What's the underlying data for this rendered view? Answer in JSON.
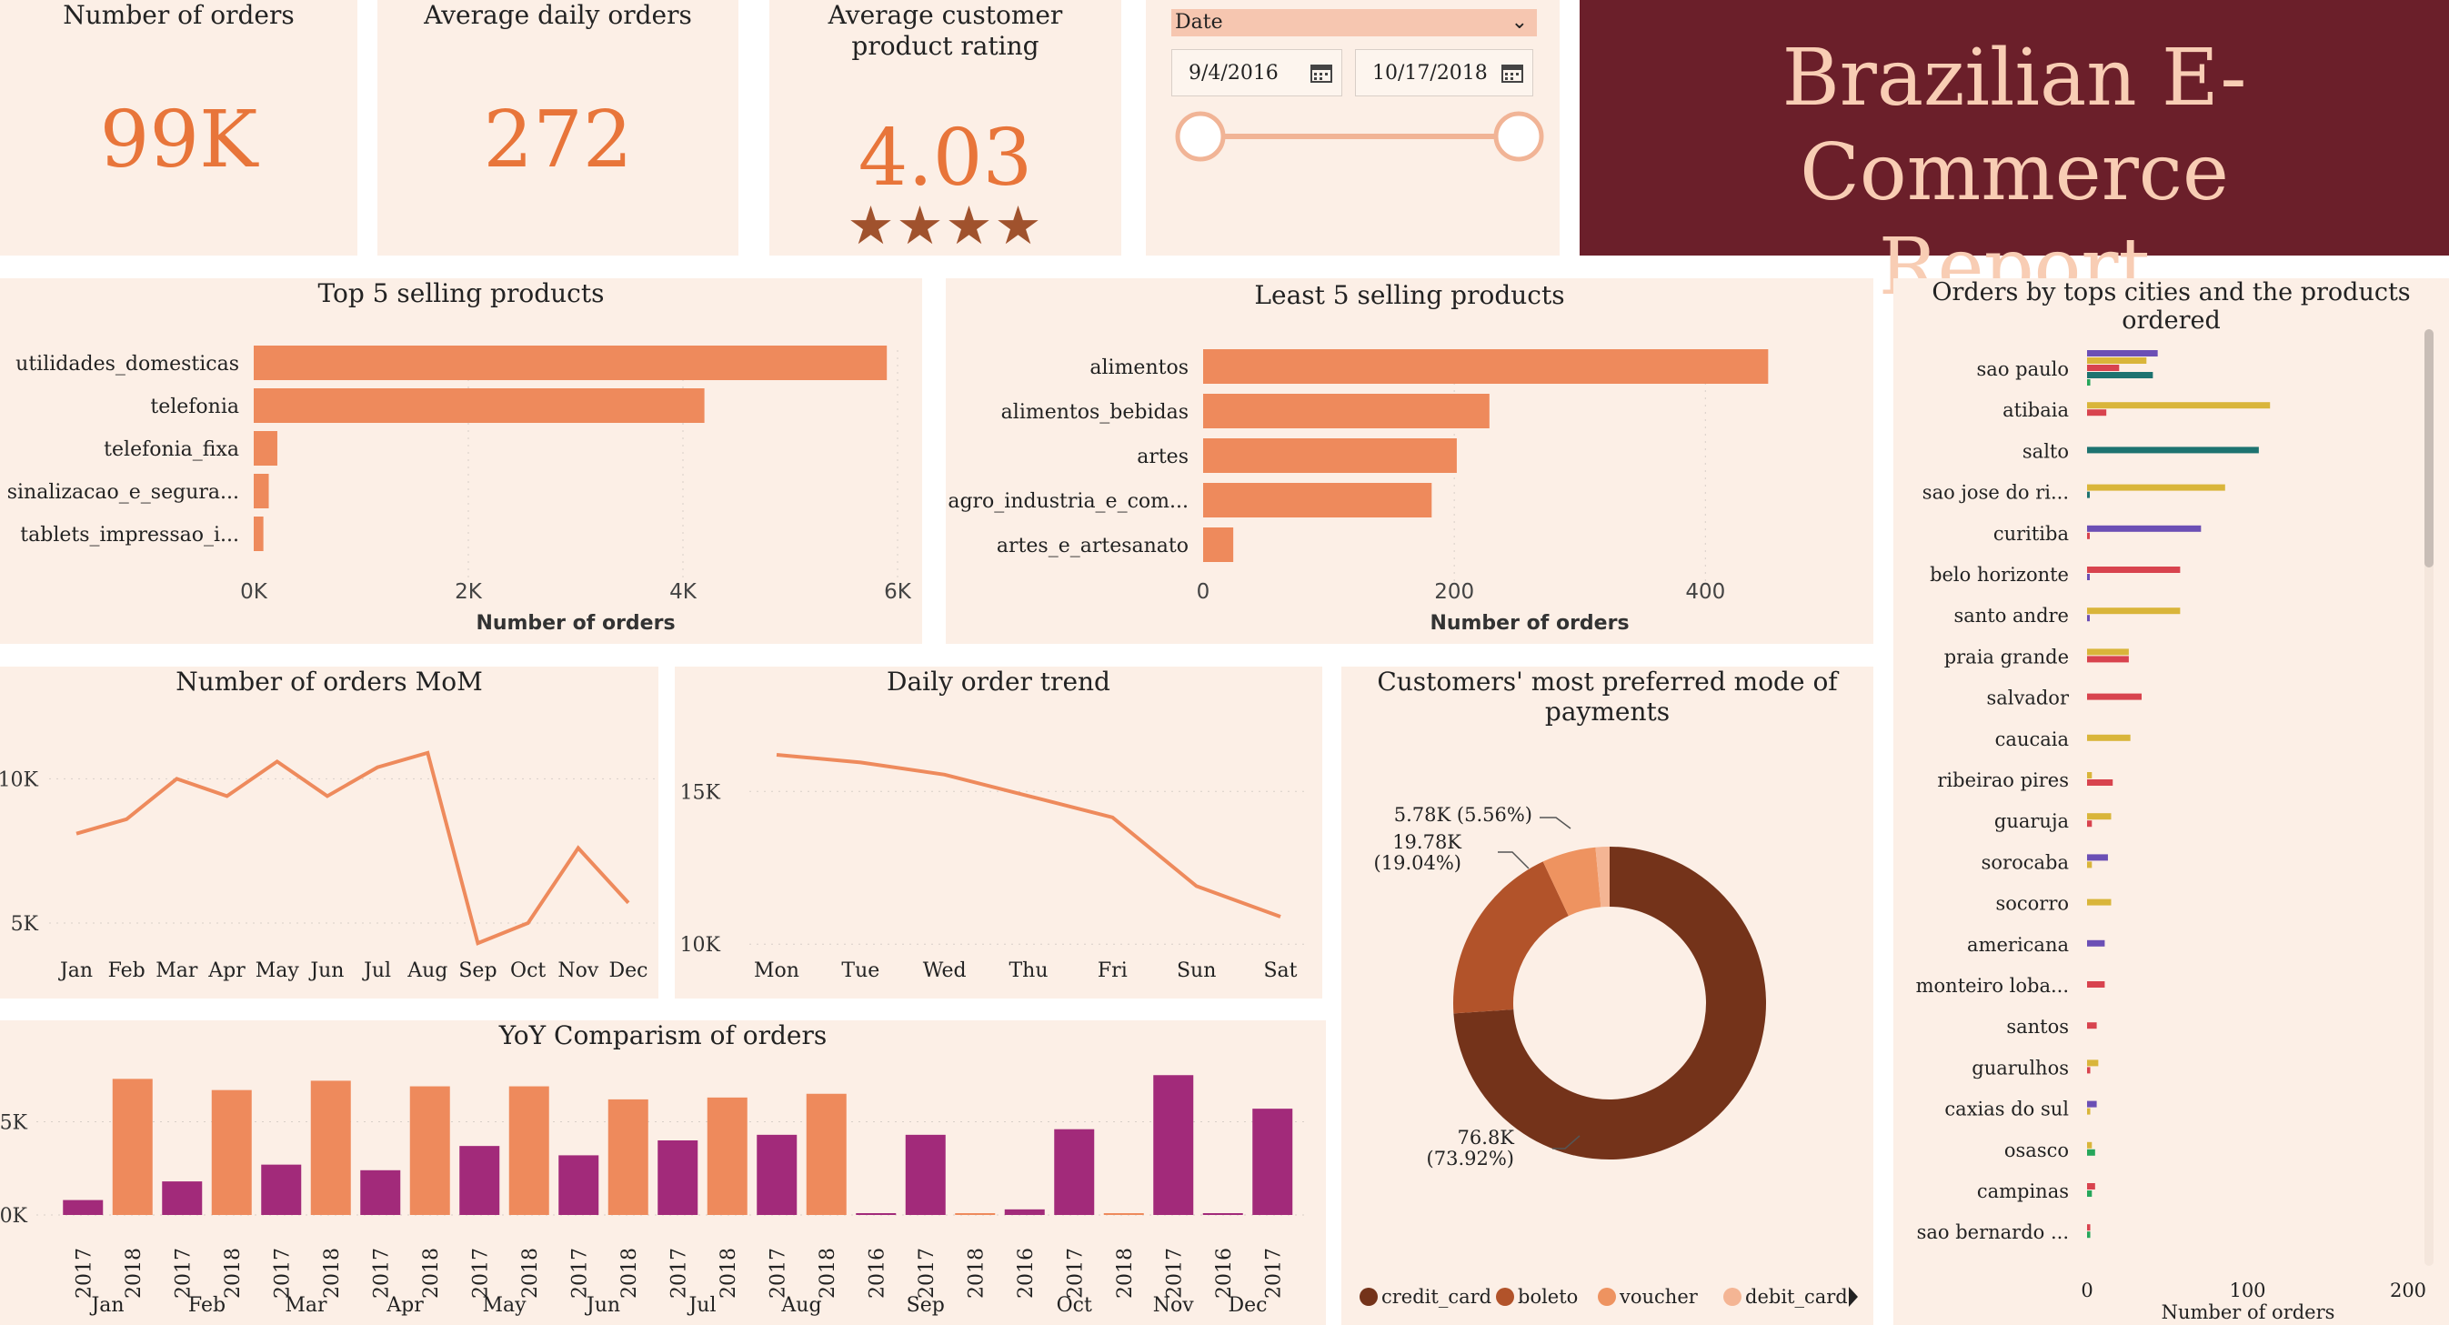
{
  "kpis": {
    "orders": {
      "label": "Number of orders",
      "value": "99K"
    },
    "avg_daily": {
      "label": "Average daily orders",
      "value": "272"
    },
    "rating": {
      "label": "Average customer product rating",
      "value": "4.03",
      "stars": 4.03,
      "star_glyphs": "★★★★"
    }
  },
  "date_filter": {
    "label": "Date",
    "start": "9/4/2016",
    "end": "10/17/2018",
    "range_start_fraction": 0,
    "range_end_fraction": 1
  },
  "banner": {
    "line1": "Brazilian E-Commerce",
    "line2": "Report"
  },
  "colors": {
    "accent": "#e8753a",
    "bar": "#ee8a5c",
    "purple": "#a22a7a",
    "banner_bg": "#6b1f2a",
    "card_bg": "#fcefe6"
  },
  "chart_data": [
    {
      "id": "top5",
      "type": "bar",
      "orientation": "horizontal",
      "title": "Top 5 selling products",
      "categories": [
        "utilidades_domesticas",
        "telefonia",
        "telefonia_fixa",
        "sinalizacao_e_segura...",
        "tablets_impressao_i..."
      ],
      "values": [
        5900,
        4200,
        220,
        140,
        90
      ],
      "xlabel": "Number of orders",
      "xlim": [
        0,
        6000
      ],
      "ticks": [
        0,
        2000,
        4000,
        6000
      ],
      "tick_labels": [
        "0K",
        "2K",
        "4K",
        "6K"
      ]
    },
    {
      "id": "least5",
      "type": "bar",
      "orientation": "horizontal",
      "title": "Least 5 selling products",
      "categories": [
        "alimentos",
        "alimentos_bebidas",
        "artes",
        "agro_industria_e_com...",
        "artes_e_artesanato"
      ],
      "values": [
        450,
        228,
        202,
        182,
        24
      ],
      "xlabel": "Number of orders",
      "xlim": [
        0,
        520
      ],
      "ticks": [
        0,
        200,
        400
      ],
      "tick_labels": [
        "0",
        "200",
        "400"
      ]
    },
    {
      "id": "mom",
      "type": "line",
      "title": "Number of orders MoM",
      "categories": [
        "Jan",
        "Feb",
        "Mar",
        "Apr",
        "May",
        "Jun",
        "Jul",
        "Aug",
        "Sep",
        "Oct",
        "Nov",
        "Dec"
      ],
      "values": [
        8100,
        8600,
        10000,
        9400,
        10600,
        9400,
        10400,
        10900,
        4300,
        5000,
        7600,
        5700
      ],
      "ylim": [
        3800,
        12000
      ],
      "ticks": [
        5000,
        10000
      ],
      "tick_labels": [
        "5K",
        "10K"
      ]
    },
    {
      "id": "daily",
      "type": "line",
      "title": "Daily order trend",
      "categories": [
        "Mon",
        "Tue",
        "Wed",
        "Thu",
        "Fri",
        "Sun",
        "Sat"
      ],
      "values": [
        16200,
        15950,
        15550,
        14850,
        14150,
        11900,
        10900
      ],
      "ylim": [
        9500,
        17300
      ],
      "ticks": [
        10000,
        15000
      ],
      "tick_labels": [
        "10K",
        "15K"
      ]
    },
    {
      "id": "yoy",
      "type": "bar",
      "title": "YoY Comparism of orders",
      "groups": [
        {
          "month": "Jan",
          "bars": [
            {
              "year": "2017",
              "value": 800
            },
            {
              "year": "2018",
              "value": 7300
            }
          ]
        },
        {
          "month": "Feb",
          "bars": [
            {
              "year": "2017",
              "value": 1800
            },
            {
              "year": "2018",
              "value": 6700
            }
          ]
        },
        {
          "month": "Mar",
          "bars": [
            {
              "year": "2017",
              "value": 2700
            },
            {
              "year": "2018",
              "value": 7200
            }
          ]
        },
        {
          "month": "Apr",
          "bars": [
            {
              "year": "2017",
              "value": 2400
            },
            {
              "year": "2018",
              "value": 6900
            }
          ]
        },
        {
          "month": "May",
          "bars": [
            {
              "year": "2017",
              "value": 3700
            },
            {
              "year": "2018",
              "value": 6900
            }
          ]
        },
        {
          "month": "Jun",
          "bars": [
            {
              "year": "2017",
              "value": 3200
            },
            {
              "year": "2018",
              "value": 6200
            }
          ]
        },
        {
          "month": "Jul",
          "bars": [
            {
              "year": "2017",
              "value": 4000
            },
            {
              "year": "2018",
              "value": 6300
            }
          ]
        },
        {
          "month": "Aug",
          "bars": [
            {
              "year": "2017",
              "value": 4300
            },
            {
              "year": "2018",
              "value": 6500
            }
          ]
        },
        {
          "month": "Sep",
          "bars": [
            {
              "year": "2016",
              "value": 40
            },
            {
              "year": "2017",
              "value": 4300
            },
            {
              "year": "2018",
              "value": 50
            }
          ]
        },
        {
          "month": "Oct",
          "bars": [
            {
              "year": "2016",
              "value": 300
            },
            {
              "year": "2017",
              "value": 4600
            },
            {
              "year": "2018",
              "value": 50
            }
          ]
        },
        {
          "month": "Nov",
          "bars": [
            {
              "year": "2017",
              "value": 7500
            }
          ]
        },
        {
          "month": "Dec",
          "bars": [
            {
              "year": "2016",
              "value": 50
            },
            {
              "year": "2017",
              "value": 5700
            }
          ]
        }
      ],
      "ylim": [
        0,
        8000
      ],
      "ticks": [
        0,
        5000
      ],
      "tick_labels": [
        "0K",
        "5K"
      ]
    },
    {
      "id": "payments",
      "type": "pie",
      "donut": true,
      "title": "Customers' most preferred mode of payments",
      "slices": [
        {
          "name": "credit_card",
          "value": 76.8,
          "label": "76.8K",
          "pct": "(73.92%)",
          "color": "#74331a"
        },
        {
          "name": "boleto",
          "value": 19.78,
          "label": "19.78K",
          "pct": "(19.04%)",
          "color": "#b2532a"
        },
        {
          "name": "voucher",
          "value": 5.78,
          "label": "5.78K (5.56%)",
          "pct": "",
          "color": "#ee9360"
        },
        {
          "name": "debit_card",
          "value": 1.5,
          "label": "",
          "pct": "",
          "color": "#f4b594"
        }
      ],
      "legend": [
        "credit_card",
        "boleto",
        "voucher",
        "debit_card"
      ]
    },
    {
      "id": "cities",
      "type": "bar",
      "orientation": "horizontal",
      "title": "Orders by tops cities and the products ordered",
      "xlabel": "Number of orders",
      "xlim": [
        0,
        200
      ],
      "ticks": [
        0,
        100,
        200
      ],
      "tick_labels": [
        "0",
        "100",
        "200"
      ],
      "series_colors": {
        "purple": "#6b4fb5",
        "gold": "#d9b53a",
        "red": "#d8434e",
        "teal": "#1d7370",
        "green": "#26a65b"
      },
      "cities": [
        {
          "name": "sao paulo",
          "bars": [
            [
              "purple",
              44
            ],
            [
              "gold",
              37
            ],
            [
              "red",
              20
            ],
            [
              "teal",
              41
            ],
            [
              "green",
              2
            ]
          ]
        },
        {
          "name": "atibaia",
          "bars": [
            [
              "gold",
              114
            ],
            [
              "red",
              12
            ]
          ]
        },
        {
          "name": "salto",
          "bars": [
            [
              "teal",
              107
            ]
          ]
        },
        {
          "name": "sao jose do ri...",
          "bars": [
            [
              "gold",
              86
            ],
            [
              "teal",
              1
            ]
          ]
        },
        {
          "name": "curitiba",
          "bars": [
            [
              "purple",
              71
            ],
            [
              "red",
              1
            ]
          ]
        },
        {
          "name": "belo horizonte",
          "bars": [
            [
              "red",
              58
            ],
            [
              "purple",
              1
            ]
          ]
        },
        {
          "name": "santo andre",
          "bars": [
            [
              "gold",
              58
            ],
            [
              "purple",
              1
            ]
          ]
        },
        {
          "name": "praia grande",
          "bars": [
            [
              "gold",
              26
            ],
            [
              "red",
              26
            ]
          ]
        },
        {
          "name": "salvador",
          "bars": [
            [
              "red",
              34
            ]
          ]
        },
        {
          "name": "caucaia",
          "bars": [
            [
              "gold",
              27
            ]
          ]
        },
        {
          "name": "ribeirao pires",
          "bars": [
            [
              "gold",
              3
            ],
            [
              "red",
              16
            ]
          ]
        },
        {
          "name": "guaruja",
          "bars": [
            [
              "gold",
              15
            ],
            [
              "red",
              3
            ]
          ]
        },
        {
          "name": "sorocaba",
          "bars": [
            [
              "purple",
              13
            ],
            [
              "gold",
              3
            ]
          ]
        },
        {
          "name": "socorro",
          "bars": [
            [
              "gold",
              15
            ]
          ]
        },
        {
          "name": "americana",
          "bars": [
            [
              "purple",
              11
            ]
          ]
        },
        {
          "name": "monteiro loba...",
          "bars": [
            [
              "red",
              11
            ]
          ]
        },
        {
          "name": "santos",
          "bars": [
            [
              "red",
              6
            ]
          ]
        },
        {
          "name": "guarulhos",
          "bars": [
            [
              "gold",
              7
            ],
            [
              "red",
              2
            ]
          ]
        },
        {
          "name": "caxias do sul",
          "bars": [
            [
              "purple",
              6
            ],
            [
              "gold",
              2
            ]
          ]
        },
        {
          "name": "osasco",
          "bars": [
            [
              "gold",
              3
            ],
            [
              "green",
              5
            ]
          ]
        },
        {
          "name": "campinas",
          "bars": [
            [
              "red",
              5
            ],
            [
              "green",
              3
            ]
          ]
        },
        {
          "name": "sao bernardo ...",
          "bars": [
            [
              "red",
              2
            ],
            [
              "green",
              2
            ]
          ]
        }
      ]
    }
  ]
}
